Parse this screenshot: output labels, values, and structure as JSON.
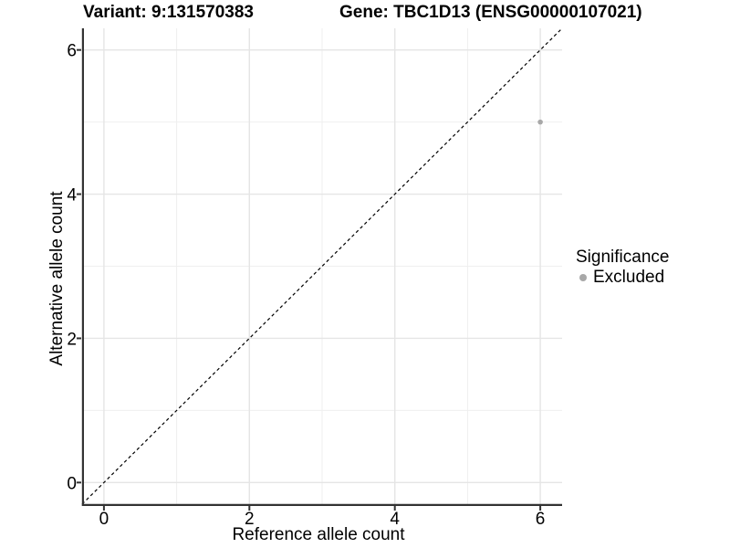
{
  "titles": {
    "variant": "Variant: 9:131570383",
    "gene": "Gene: TBC1D13 (ENSG00000107021)"
  },
  "axes": {
    "x": {
      "label": "Reference allele count"
    },
    "y": {
      "label": "Alternative allele count"
    }
  },
  "legend": {
    "title": "Significance",
    "entries": [
      {
        "label": "Excluded",
        "marker": "circle-icon",
        "color": "#a8a8a8"
      }
    ]
  },
  "chart_data": {
    "type": "scatter",
    "title": "Variant: 9:131570383 | Gene: TBC1D13 (ENSG00000107021)",
    "xlabel": "Reference allele count",
    "ylabel": "Alternative allele count",
    "xlim": [
      -0.3,
      6.3
    ],
    "ylim": [
      -0.3,
      6.3
    ],
    "x_major_ticks": [
      0,
      2,
      4,
      6
    ],
    "y_major_ticks": [
      0,
      2,
      4,
      6
    ],
    "x_minor_gridlines": [
      1,
      3,
      5
    ],
    "y_minor_gridlines": [
      1,
      3,
      5
    ],
    "grid": "on",
    "legend_position": "right",
    "series": [
      {
        "name": "Excluded",
        "type": "scatter",
        "color": "#a8a8a8",
        "points": [
          {
            "x": 6,
            "y": 5
          }
        ]
      }
    ],
    "reference_line": {
      "kind": "identity",
      "equation": "y = x",
      "style": "dashed",
      "color": "#000000"
    }
  },
  "colors": {
    "background": "#ffffff",
    "grid_major": "#e5e5e5",
    "grid_minor": "#efefef",
    "axis_line": "#333333",
    "tick_mark": "#333333",
    "tick_label": "#000000",
    "point": "#a8a8a8",
    "reference_line": "#000000"
  }
}
